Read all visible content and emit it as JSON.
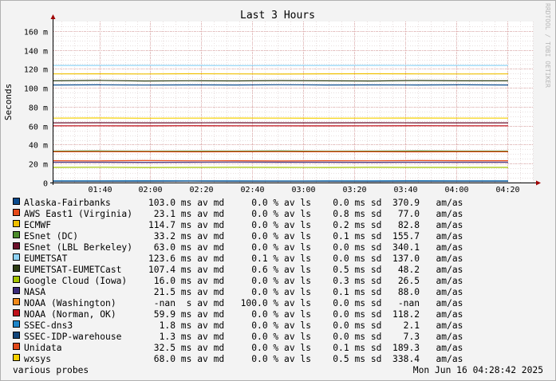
{
  "chart_data": {
    "type": "line",
    "title": "Last 3 Hours",
    "ylabel": "Seconds",
    "watermark": "RRDTOOL / TOBI OETIKER",
    "ylim": [
      0,
      0.17
    ],
    "y_ticks": [
      {
        "v": 0,
        "label": "0"
      },
      {
        "v": 0.02,
        "label": "20 m"
      },
      {
        "v": 0.04,
        "label": "40 m"
      },
      {
        "v": 0.06,
        "label": "60 m"
      },
      {
        "v": 0.08,
        "label": "80 m"
      },
      {
        "v": 0.1,
        "label": "100 m"
      },
      {
        "v": 0.12,
        "label": "120 m"
      },
      {
        "v": 0.14,
        "label": "140 m"
      },
      {
        "v": 0.16,
        "label": "160 m"
      }
    ],
    "xlim": [
      "01:22",
      "04:30"
    ],
    "x_ticks": [
      "01:40",
      "02:00",
      "02:20",
      "02:40",
      "03:00",
      "03:20",
      "03:40",
      "04:00",
      "04:20"
    ],
    "series": [
      {
        "name": "Alaska-Fairbanks",
        "color": "#0b4a8c",
        "values": [
          0.103,
          0.1032,
          0.1029,
          0.1031,
          0.103,
          0.1033,
          0.103,
          0.1031,
          0.103,
          0.1032,
          0.103
        ]
      },
      {
        "name": "AWS East1 (Virginia)",
        "color": "#e64a19",
        "values": [
          0.0231,
          0.0229,
          0.0232,
          0.023,
          0.0231,
          0.0228,
          0.0231,
          0.023,
          0.0232,
          0.0231,
          0.0231
        ]
      },
      {
        "name": "ECMWF",
        "color": "#f0c000",
        "values": [
          0.1147,
          0.1148,
          0.1146,
          0.1149,
          0.1147,
          0.1145,
          0.1148,
          0.1149,
          0.1147,
          0.1146,
          0.1147
        ]
      },
      {
        "name": "ESnet (DC)",
        "color": "#4c8c2b",
        "values": [
          0.0332,
          0.0333,
          0.0331,
          0.0332,
          0.0332,
          0.0333,
          0.0331,
          0.0332,
          0.0333,
          0.0332,
          0.0332
        ]
      },
      {
        "name": "ESnet (LBL Berkeley)",
        "color": "#6b0f2a",
        "values": [
          0.063,
          0.0631,
          0.063,
          0.063,
          0.0631,
          0.063,
          0.063,
          0.0631,
          0.063,
          0.063,
          0.063
        ]
      },
      {
        "name": "EUMETSAT",
        "color": "#8fd3f5",
        "values": [
          0.1236,
          0.1236,
          0.1237,
          0.1236,
          0.1235,
          0.1236,
          0.1236,
          0.1237,
          0.1236,
          0.1236,
          0.1236
        ]
      },
      {
        "name": "EUMETSAT-EUMETCast",
        "color": "#2e3d14",
        "values": [
          0.1074,
          0.1078,
          0.1072,
          0.1075,
          0.1073,
          0.1076,
          0.1074,
          0.1072,
          0.1077,
          0.1074,
          0.1074
        ]
      },
      {
        "name": "Google Cloud (Iowa)",
        "color": "#a4c400",
        "values": [
          0.016,
          0.0162,
          0.0159,
          0.016,
          0.0161,
          0.016,
          0.0159,
          0.0161,
          0.016,
          0.016,
          0.016
        ]
      },
      {
        "name": "NASA",
        "color": "#3b2a7a",
        "values": [
          0.0215,
          0.0215,
          0.0214,
          0.0215,
          0.0216,
          0.0215,
          0.0215,
          0.0214,
          0.0215,
          0.0215,
          0.0215
        ]
      },
      {
        "name": "NOAA (Washington)",
        "color": "#f28a1a",
        "values": []
      },
      {
        "name": "NOAA (Norman, OK)",
        "color": "#c0101a",
        "values": [
          0.0599,
          0.0599,
          0.0598,
          0.06,
          0.0599,
          0.0599,
          0.0598,
          0.0599,
          0.06,
          0.0599,
          0.0599
        ]
      },
      {
        "name": "SSEC-dns3",
        "color": "#1f86c9",
        "values": [
          0.0018,
          0.0018,
          0.0019,
          0.0018,
          0.0018,
          0.0017,
          0.0018,
          0.0018,
          0.0019,
          0.0018,
          0.0018
        ]
      },
      {
        "name": "SSEC-IDP-warehouse",
        "color": "#12457a",
        "values": [
          0.0013,
          0.0013,
          0.0013,
          0.0014,
          0.0013,
          0.0013,
          0.0013,
          0.0012,
          0.0013,
          0.0013,
          0.0013
        ]
      },
      {
        "name": "Unidata",
        "color": "#e0481a",
        "values": [
          0.0325,
          0.0326,
          0.0325,
          0.0324,
          0.0325,
          0.0326,
          0.0325,
          0.0325,
          0.0324,
          0.0325,
          0.0325
        ]
      },
      {
        "name": "wxsys",
        "color": "#f5d000",
        "values": [
          0.068,
          0.0682,
          0.0679,
          0.068,
          0.0681,
          0.068,
          0.0679,
          0.068,
          0.0681,
          0.068,
          0.068
        ]
      }
    ]
  },
  "legend": [
    {
      "label": "Alaska-Fairbanks",
      "color": "#0b4a8c",
      "stats": "103.0 ms av md     0.0 % av ls    0.0 ms sd  370.9   am/as"
    },
    {
      "label": "AWS East1 (Virginia)",
      "color": "#e64a19",
      "stats": " 23.1 ms av md     0.0 % av ls    0.8 ms sd   77.0   am/as"
    },
    {
      "label": "ECMWF",
      "color": "#f0c000",
      "stats": "114.7 ms av md     0.0 % av ls    0.2 ms sd   82.8   am/as"
    },
    {
      "label": "ESnet (DC)",
      "color": "#4c8c2b",
      "stats": " 33.2 ms av md     0.0 % av ls    0.1 ms sd  155.7   am/as"
    },
    {
      "label": "ESnet (LBL Berkeley)",
      "color": "#6b0f2a",
      "stats": " 63.0 ms av md     0.0 % av ls    0.0 ms sd  340.1   am/as"
    },
    {
      "label": "EUMETSAT",
      "color": "#8fd3f5",
      "stats": "123.6 ms av md     0.1 % av ls    0.0 ms sd  137.0   am/as"
    },
    {
      "label": "EUMETSAT-EUMETCast",
      "color": "#2e3d14",
      "stats": "107.4 ms av md     0.6 % av ls    0.5 ms sd   48.2   am/as"
    },
    {
      "label": "Google Cloud (Iowa)",
      "color": "#a4c400",
      "stats": " 16.0 ms av md     0.0 % av ls    0.3 ms sd   26.5   am/as"
    },
    {
      "label": "NASA",
      "color": "#3b2a7a",
      "stats": " 21.5 ms av md     0.0 % av ls    0.1 ms sd   88.0   am/as"
    },
    {
      "label": "NOAA (Washington)",
      "color": "#f28a1a",
      "stats": " -nan  s av md   100.0 % av ls    0.0 ms sd   -nan   am/as"
    },
    {
      "label": "NOAA (Norman, OK)",
      "color": "#c0101a",
      "stats": " 59.9 ms av md     0.0 % av ls    0.0 ms sd  118.2   am/as"
    },
    {
      "label": "SSEC-dns3",
      "color": "#1f86c9",
      "stats": "  1.8 ms av md     0.0 % av ls    0.0 ms sd    2.1   am/as"
    },
    {
      "label": "SSEC-IDP-warehouse",
      "color": "#12457a",
      "stats": "  1.3 ms av md     0.0 % av ls    0.0 ms sd    7.3   am/as"
    },
    {
      "label": "Unidata",
      "color": "#e0481a",
      "stats": " 32.5 ms av md     0.0 % av ls    0.1 ms sd  189.3   am/as"
    },
    {
      "label": "wxsys",
      "color": "#f5d000",
      "stats": " 68.0 ms av md     0.0 % av ls    0.5 ms sd  338.4   am/as"
    }
  ],
  "footer": {
    "left": "various probes",
    "right": "Mon Jun 16 04:28:42 2025"
  }
}
